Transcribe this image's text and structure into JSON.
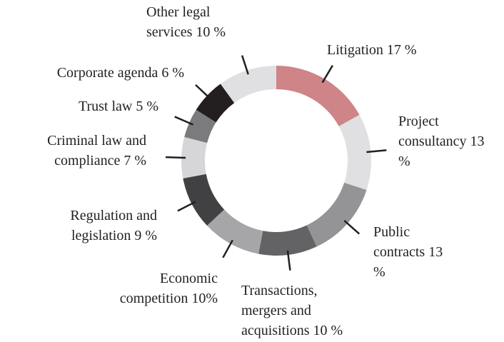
{
  "chart_data": {
    "type": "donut",
    "categories": [
      "Litigation",
      "Project consultancy",
      "Public contracts",
      "Transactions, mergers and acquisitions",
      "Economic competition",
      "Regulation and legislation",
      "Criminal law and compliance",
      "Trust law",
      "Corporate agenda",
      "Other legal services"
    ],
    "values": [
      17,
      13,
      13,
      10,
      10,
      9,
      7,
      5,
      6,
      10
    ],
    "value_labels": [
      "17 %",
      "13 %",
      "13 %",
      "10 %",
      "10%",
      "9 %",
      "7 %",
      "5 %",
      "6 %",
      "10 %"
    ],
    "colors": [
      "#cf8488",
      "#e0e0e2",
      "#949496",
      "#636365",
      "#a6a6a8",
      "#414143",
      "#d6d6d8",
      "#7b7b7d",
      "#231f20",
      "#e0e0e2"
    ]
  }
}
